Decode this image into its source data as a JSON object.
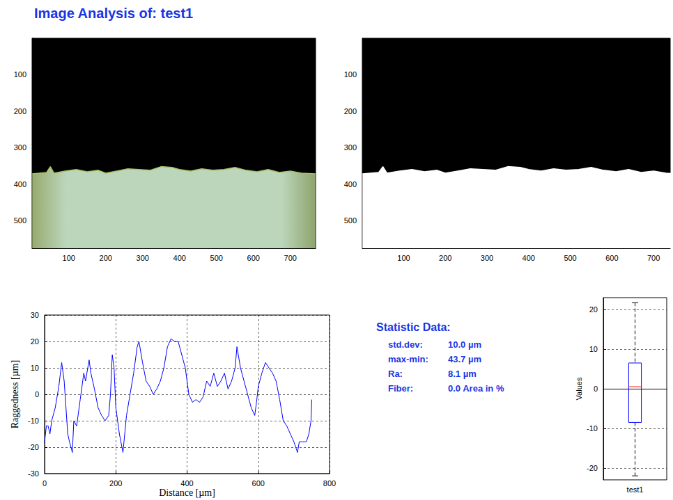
{
  "title": "Image Analysis of: test1",
  "chart_data": [
    {
      "type": "image",
      "xlim": [
        0.5,
        768.5
      ],
      "ylim": [
        0.5,
        575.5
      ],
      "xticks": [
        100,
        200,
        300,
        400,
        500,
        600,
        700
      ],
      "yticks": [
        100,
        200,
        300,
        400,
        500
      ],
      "x": [
        1,
        40,
        50,
        60,
        90,
        120,
        150,
        180,
        200,
        230,
        260,
        290,
        320,
        350,
        380,
        400,
        430,
        460,
        490,
        520,
        550,
        580,
        610,
        640,
        670,
        700,
        730,
        768
      ],
      "values": [
        372,
        368,
        352,
        370,
        364,
        360,
        366,
        362,
        370,
        364,
        358,
        360,
        362,
        352,
        354,
        360,
        364,
        358,
        362,
        360,
        354,
        362,
        366,
        360,
        368,
        364,
        370,
        372
      ],
      "color": "#bcd6bc"
    },
    {
      "type": "image",
      "xlim": [
        0.5,
        740
      ],
      "ylim": [
        0.5,
        575.5
      ],
      "xticks": [
        100,
        200,
        300,
        400,
        500,
        600,
        700
      ],
      "yticks": [
        100,
        200,
        300,
        400,
        500
      ],
      "x": [
        1,
        40,
        50,
        60,
        90,
        120,
        150,
        180,
        200,
        230,
        260,
        290,
        320,
        350,
        380,
        400,
        430,
        460,
        490,
        520,
        550,
        580,
        610,
        640,
        670,
        700,
        730,
        768
      ],
      "values": [
        372,
        368,
        352,
        370,
        364,
        360,
        366,
        362,
        370,
        364,
        358,
        360,
        362,
        352,
        354,
        360,
        364,
        358,
        362,
        360,
        354,
        362,
        366,
        360,
        368,
        364,
        370,
        372
      ],
      "color": "#ffffff"
    },
    {
      "type": "line",
      "xlabel": "Distance [µm]",
      "ylabel": "Raggedness [µm]",
      "xlim": [
        0,
        800
      ],
      "ylim": [
        -30,
        30
      ],
      "xticks": [
        0,
        200,
        400,
        600,
        800
      ],
      "yticks": [
        -30,
        -20,
        -10,
        0,
        10,
        20,
        30
      ],
      "grid": true,
      "color": "#0000ff",
      "x": [
        0,
        5,
        10,
        15,
        20,
        30,
        40,
        48,
        55,
        60,
        65,
        70,
        78,
        82,
        90,
        100,
        110,
        115,
        125,
        130,
        140,
        150,
        160,
        170,
        180,
        185,
        190,
        195,
        200,
        210,
        220,
        230,
        240,
        250,
        260,
        265,
        275,
        285,
        295,
        305,
        315,
        325,
        335,
        345,
        355,
        365,
        375,
        385,
        395,
        405,
        415,
        425,
        435,
        445,
        455,
        465,
        475,
        485,
        495,
        505,
        515,
        525,
        535,
        540,
        550,
        560,
        570,
        580,
        590,
        595,
        600,
        610,
        620,
        630,
        640,
        650,
        660,
        670,
        680,
        690,
        700,
        710,
        715,
        725,
        735,
        742,
        748,
        750
      ],
      "values": [
        -18,
        -12,
        -12,
        -15,
        -10,
        -5,
        3,
        12,
        5,
        -5,
        -15,
        -18,
        -22,
        -10,
        -12,
        -2,
        8,
        5,
        13,
        8,
        2,
        -5,
        -8,
        -10,
        -8,
        0,
        15,
        10,
        -5,
        -15,
        -22,
        -8,
        0,
        8,
        18,
        20,
        12,
        5,
        3,
        0,
        2,
        5,
        10,
        18,
        21,
        20,
        20,
        15,
        10,
        0,
        -3,
        -2,
        -3,
        -1,
        5,
        3,
        8,
        3,
        5,
        8,
        2,
        5,
        10,
        18,
        10,
        5,
        0,
        -5,
        -8,
        -3,
        3,
        8,
        12,
        10,
        8,
        5,
        -2,
        -10,
        -12,
        -15,
        -18,
        -22,
        -18,
        -18,
        -18,
        -15,
        -10,
        -2
      ]
    },
    {
      "type": "box",
      "ylabel": "Values",
      "ylim": [
        -23,
        23
      ],
      "yticks": [
        -20,
        -10,
        0,
        10,
        20
      ],
      "grid": true,
      "color": "#0000ff",
      "boxes": [
        {
          "name": "test1",
          "min": -22.0,
          "q1": -8.5,
          "median": 0.5,
          "q3": 6.5,
          "max": 21.7
        }
      ]
    }
  ],
  "statistics": {
    "title": "Statistic Data:",
    "rows": [
      {
        "label": "std.dev:",
        "value": "10.0 µm"
      },
      {
        "label": "max-min:",
        "value": "43.7 µm"
      },
      {
        "label": "Ra:",
        "value": "8.1 µm"
      },
      {
        "label": "Fiber:",
        "value": "0.0 Area in %"
      }
    ]
  }
}
